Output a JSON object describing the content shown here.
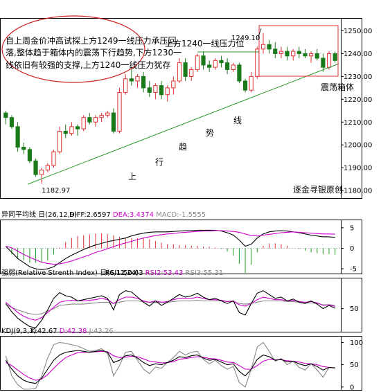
{
  "chart_data": [
    {
      "type": "candlestick",
      "ylim": [
        1177,
        1255
      ],
      "y_ticks": [
        "1250.00",
        "1240.00",
        "1230.00",
        "1220.00",
        "1210.00",
        "1200.00",
        "1190.00",
        "1180.00"
      ],
      "y_tick_values": [
        1250,
        1240,
        1230,
        1220,
        1210,
        1200,
        1190,
        1180
      ],
      "ohlc": [
        [
          1214,
          1215,
          1209,
          1212
        ],
        [
          1212,
          1213,
          1207,
          1208
        ],
        [
          1208,
          1210,
          1197,
          1199
        ],
        [
          1199,
          1201,
          1196,
          1198
        ],
        [
          1198,
          1199,
          1192,
          1193
        ],
        [
          1193,
          1194,
          1186,
          1187
        ],
        [
          1187,
          1190,
          1183,
          1189
        ],
        [
          1189,
          1192,
          1188,
          1191
        ],
        [
          1191,
          1198,
          1190,
          1197
        ],
        [
          1197,
          1208,
          1196,
          1206
        ],
        [
          1206,
          1209,
          1203,
          1205
        ],
        [
          1205,
          1210,
          1204,
          1208
        ],
        [
          1208,
          1209,
          1204,
          1207
        ],
        [
          1207,
          1213,
          1206,
          1212
        ],
        [
          1212,
          1214,
          1209,
          1210
        ],
        [
          1210,
          1213,
          1208,
          1212
        ],
        [
          1212,
          1214,
          1210,
          1213
        ],
        [
          1213,
          1215,
          1212,
          1214
        ],
        [
          1214,
          1216,
          1205,
          1206
        ],
        [
          1206,
          1225,
          1205,
          1223
        ],
        [
          1223,
          1231,
          1222,
          1229
        ],
        [
          1229,
          1234,
          1226,
          1228
        ],
        [
          1228,
          1231,
          1225,
          1230
        ],
        [
          1230,
          1232,
          1223,
          1225
        ],
        [
          1225,
          1228,
          1221,
          1223
        ],
        [
          1223,
          1227,
          1220,
          1226
        ],
        [
          1226,
          1228,
          1220,
          1222
        ],
        [
          1222,
          1226,
          1219,
          1225
        ],
        [
          1225,
          1230,
          1222,
          1228
        ],
        [
          1228,
          1238,
          1227,
          1236
        ],
        [
          1236,
          1238,
          1228,
          1230
        ],
        [
          1230,
          1234,
          1228,
          1233
        ],
        [
          1233,
          1240,
          1232,
          1239
        ],
        [
          1239,
          1241,
          1233,
          1235
        ],
        [
          1235,
          1237,
          1232,
          1234
        ],
        [
          1234,
          1238,
          1233,
          1237
        ],
        [
          1237,
          1239,
          1234,
          1236
        ],
        [
          1236,
          1238,
          1231,
          1233
        ],
        [
          1233,
          1236,
          1232,
          1235
        ],
        [
          1235,
          1236,
          1227,
          1228
        ],
        [
          1228,
          1229,
          1223,
          1224
        ],
        [
          1224,
          1232,
          1223,
          1230
        ],
        [
          1230,
          1243,
          1229,
          1242
        ],
        [
          1242,
          1249.1,
          1240,
          1244
        ],
        [
          1244,
          1246,
          1240,
          1242
        ],
        [
          1242,
          1245,
          1238,
          1240
        ],
        [
          1240,
          1243,
          1238,
          1241
        ],
        [
          1241,
          1243,
          1237,
          1239
        ],
        [
          1239,
          1242,
          1237,
          1241
        ],
        [
          1241,
          1243,
          1238,
          1240
        ],
        [
          1240,
          1242,
          1238,
          1239
        ],
        [
          1239,
          1241,
          1236,
          1240
        ],
        [
          1240,
          1242,
          1237,
          1238
        ],
        [
          1238,
          1240,
          1232,
          1234
        ],
        [
          1234,
          1241,
          1233,
          1240
        ],
        [
          1240,
          1241,
          1236,
          1237
        ]
      ],
      "annotations": {
        "comment": "自上周金价冲高试探上方1249一线压力承压回落,整体趋于箱体内的震荡下行趋势,下方1230一线依旧有较强的支撑,上方1240一线压力犹存",
        "resistance_label": "上方1240一线压力位",
        "high_label": "1249.10",
        "low_label": "1182.97",
        "box_label": "震荡箱体",
        "trend_chars": [
          "上",
          "行",
          "趋",
          "势",
          "线"
        ],
        "watermark": "逐金寻银原创"
      }
    },
    {
      "type": "macd",
      "title": "异同平均线 日(26,12,9)",
      "legend": [
        {
          "text": "DIFF:2.6597",
          "color": "#000000"
        },
        {
          "text": "DEA:3.4374",
          "color": "#cc00cc"
        },
        {
          "text": "MACD:-1.5555",
          "color": "#888888"
        }
      ],
      "ylim": [
        -6,
        6.5
      ],
      "y_ticks": [
        "5",
        "0",
        "-5"
      ],
      "y_tick_values": [
        5,
        0,
        -5
      ],
      "diff": [
        0.5,
        -1,
        -2.5,
        -3.5,
        -4.5,
        -5,
        -5.2,
        -5,
        -4.5,
        -3.5,
        -2.5,
        -1.7,
        -1,
        -0.3,
        0.3,
        0.8,
        1.2,
        1.6,
        1.9,
        2.2,
        2.5,
        3,
        3.4,
        3.7,
        3.9,
        4,
        4,
        4,
        4.1,
        4.2,
        4.3,
        4.3,
        4.4,
        4.4,
        4.4,
        4.4,
        4.2,
        3.8,
        3.2,
        2,
        0.5,
        1,
        2.5,
        3.5,
        4,
        4.2,
        4.3,
        4.2,
        4,
        3.8,
        3.5,
        3.2,
        3,
        2.8,
        2.8,
        2.66
      ],
      "dea": [
        0.5,
        0.1,
        -0.7,
        -1.5,
        -2.2,
        -2.8,
        -3.4,
        -3.7,
        -3.9,
        -3.8,
        -3.5,
        -3.1,
        -2.6,
        -2.1,
        -1.6,
        -1,
        -0.6,
        -0.1,
        0.4,
        0.9,
        1.3,
        1.7,
        2.1,
        2.5,
        2.8,
        3.1,
        3.3,
        3.5,
        3.6,
        3.8,
        3.9,
        4,
        4.1,
        4.2,
        4.2,
        4.3,
        4.3,
        4.2,
        4.1,
        3.9,
        3.5,
        3.1,
        3,
        3.2,
        3.4,
        3.6,
        3.8,
        3.9,
        4,
        3.9,
        3.8,
        3.7,
        3.6,
        3.5,
        3.5,
        3.44
      ],
      "macd": [
        0,
        -1.5,
        -2.5,
        -3,
        -3.5,
        -3.5,
        -3.5,
        -3,
        -1.5,
        0.2,
        1.5,
        2.5,
        3,
        3.2,
        3.4,
        3.6,
        3.6,
        3.5,
        3.2,
        2.8,
        2.6,
        2.5,
        2.5,
        2.4,
        2.2,
        1.8,
        1.4,
        1,
        1,
        0.8,
        0.8,
        0.6,
        0.6,
        0.4,
        0.4,
        0.2,
        -0.2,
        -0.8,
        -1.8,
        -3.8,
        -6,
        -4,
        -1,
        0.6,
        1.2,
        1.2,
        1,
        0.6,
        0,
        -0.2,
        -0.6,
        -1,
        -1.2,
        -1.4,
        -1.4,
        -1.56
      ]
    },
    {
      "type": "rsi",
      "title": "强弱(Relative Strenth Index) 日(6,12,24)",
      "legend": [
        {
          "text": "RSI1:50.63",
          "color": "#000000"
        },
        {
          "text": "RSI2:53.43",
          "color": "#cc00cc"
        },
        {
          "text": "RSI3:55.31",
          "color": "#888888"
        }
      ],
      "ylim": [
        15,
        95
      ],
      "y_ticks": [
        "50"
      ],
      "y_tick_values": [
        50
      ],
      "rsi1": [
        58,
        45,
        35,
        28,
        22,
        20,
        32,
        48,
        66,
        75,
        70,
        68,
        62,
        64,
        66,
        68,
        70,
        66,
        48,
        72,
        78,
        76,
        68,
        60,
        54,
        62,
        55,
        60,
        66,
        72,
        68,
        70,
        74,
        68,
        64,
        66,
        62,
        58,
        62,
        44,
        40,
        58,
        74,
        78,
        72,
        66,
        68,
        62,
        65,
        60,
        58,
        62,
        57,
        50,
        55,
        50.63
      ],
      "rsi2": [
        60,
        52,
        44,
        38,
        34,
        32,
        36,
        44,
        52,
        60,
        62,
        63,
        62,
        62,
        63,
        64,
        66,
        64,
        58,
        64,
        68,
        68,
        66,
        62,
        60,
        62,
        60,
        61,
        64,
        66,
        66,
        66,
        68,
        66,
        64,
        64,
        63,
        61,
        62,
        56,
        54,
        58,
        64,
        68,
        66,
        64,
        64,
        62,
        63,
        61,
        60,
        61,
        59,
        55,
        56,
        53.43
      ],
      "rsi3": [
        56,
        52,
        48,
        45,
        42,
        41,
        42,
        46,
        50,
        55,
        56,
        57,
        57,
        57,
        58,
        59,
        60,
        60,
        58,
        60,
        62,
        62,
        62,
        61,
        60,
        60,
        60,
        60,
        61,
        62,
        62,
        62,
        63,
        62,
        62,
        62,
        62,
        61,
        61,
        58,
        57,
        58,
        60,
        62,
        62,
        62,
        62,
        61,
        61,
        60,
        59,
        59,
        58,
        56,
        56,
        55.31
      ]
    },
    {
      "type": "kdj",
      "title": "KDJ(9,3,3)",
      "legend": [
        {
          "text": "K:42.67",
          "color": "#000000"
        },
        {
          "text": "D:42.38",
          "color": "#cc00cc"
        },
        {
          "text": "J:43.26",
          "color": "#888888"
        }
      ],
      "ylim": [
        -5,
        110
      ],
      "y_ticks": [
        "100",
        "50",
        "0"
      ],
      "y_tick_values": [
        100,
        50,
        0
      ],
      "k": [
        60,
        40,
        25,
        15,
        10,
        8,
        20,
        40,
        60,
        72,
        78,
        80,
        82,
        80,
        78,
        80,
        82,
        78,
        55,
        60,
        70,
        72,
        65,
        55,
        48,
        52,
        50,
        55,
        60,
        68,
        66,
        70,
        72,
        65,
        60,
        62,
        56,
        50,
        52,
        35,
        25,
        40,
        62,
        72,
        68,
        60,
        62,
        56,
        58,
        52,
        48,
        52,
        46,
        38,
        44,
        42.67
      ],
      "d": [
        55,
        48,
        38,
        28,
        20,
        15,
        18,
        28,
        42,
        55,
        66,
        72,
        77,
        78,
        78,
        79,
        80,
        79,
        70,
        66,
        67,
        69,
        68,
        63,
        58,
        56,
        54,
        55,
        57,
        62,
        64,
        66,
        68,
        67,
        64,
        63,
        60,
        56,
        55,
        48,
        40,
        40,
        48,
        58,
        62,
        61,
        61,
        59,
        58,
        56,
        53,
        52,
        50,
        46,
        44,
        42.38
      ],
      "j": [
        70,
        25,
        5,
        -5,
        -5,
        -3,
        25,
        65,
        95,
        100,
        98,
        95,
        92,
        86,
        80,
        82,
        86,
        75,
        25,
        48,
        78,
        80,
        60,
        40,
        30,
        45,
        42,
        55,
        66,
        80,
        72,
        78,
        80,
        62,
        52,
        60,
        48,
        40,
        46,
        10,
        0,
        40,
        90,
        100,
        80,
        58,
        64,
        50,
        58,
        44,
        38,
        52,
        38,
        22,
        44,
        43.26
      ]
    }
  ]
}
